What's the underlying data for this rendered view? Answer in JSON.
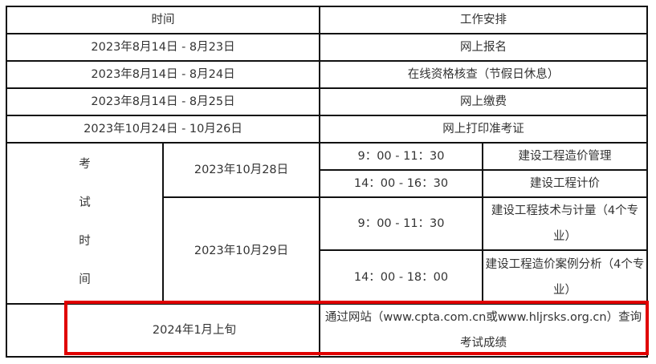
{
  "table": {
    "headers": [
      "时间",
      "工作安排"
    ],
    "schedule": [
      {
        "time": "2023年8月14日 - 8月23日",
        "task": "网上报名"
      },
      {
        "time": "2023年8月14日 - 8月24日",
        "task": "在线资格核查（节假日休息）"
      },
      {
        "time": "2023年8月14日 - 8月25日",
        "task": "网上缴费"
      },
      {
        "time": "2023年10月24日 - 10月26日",
        "task": "网上打印准考证"
      }
    ],
    "exam_label": [
      "考",
      "试",
      "时",
      "间"
    ],
    "exams": [
      {
        "date": "2023年10月28日",
        "sessions": [
          {
            "time": "9：00 - 11：30",
            "subject": "建设工程造价管理"
          },
          {
            "time": "14：00 - 16：30",
            "subject": "建设工程计价"
          }
        ]
      },
      {
        "date": "2023年10月29日",
        "sessions": [
          {
            "time": "9：00 - 11：30",
            "subject": "建设工程技术与计量（4个专业）"
          },
          {
            "time": "14：00 - 18：00",
            "subject": "建设工程造价案例分析（4个专业）"
          }
        ]
      }
    ],
    "results": {
      "time": "2024年1月上旬",
      "task": "通过网站（www.cpta.com.cn或www.hljrsks.org.cn）查询考试成绩"
    }
  },
  "highlight_color": "#e00000"
}
